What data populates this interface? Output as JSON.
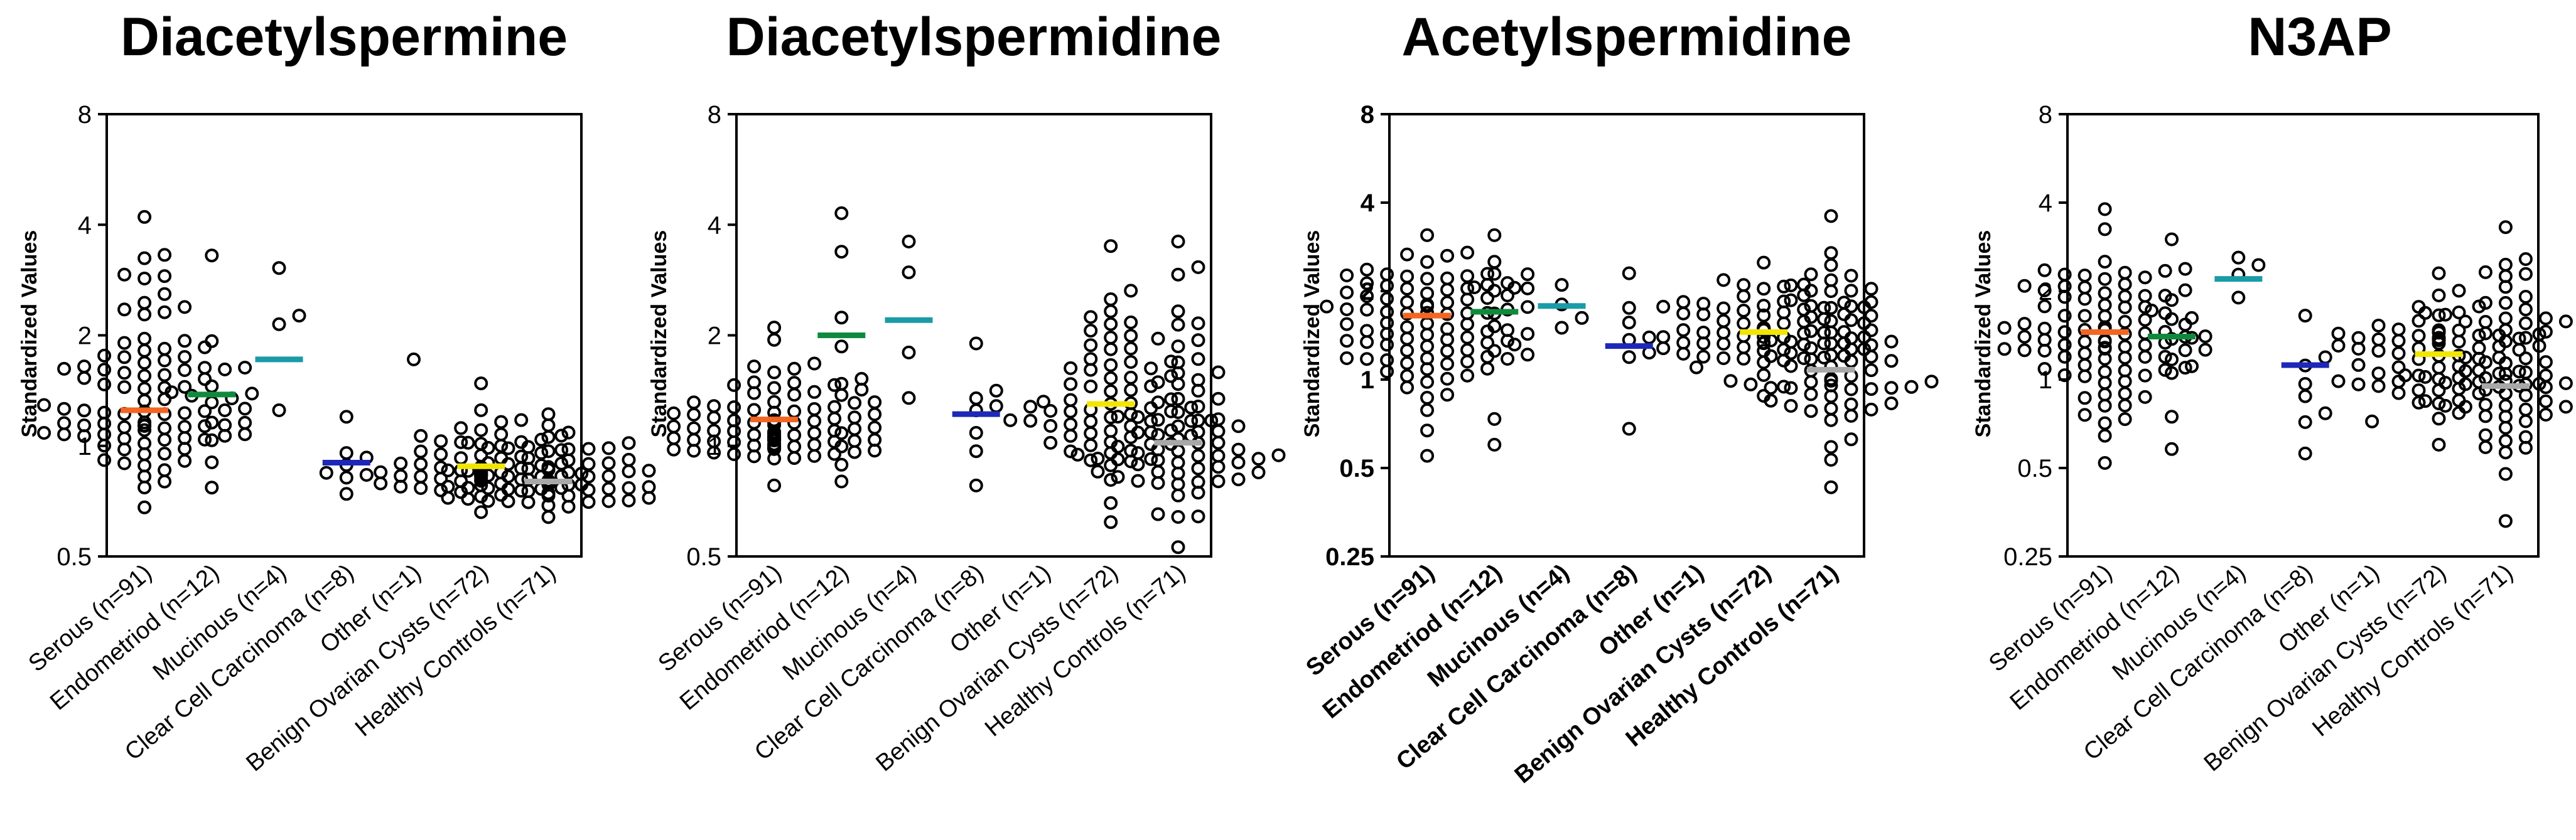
{
  "figure": {
    "description_label": "Standardized values of polyamines by ovarian tumor type"
  },
  "colors": {
    "Serous": "#f26522",
    "Endometriod": "#0f8a3c",
    "Mucinous": "#1a9ba8",
    "Clear Cell Carcinoma": "#1d28b8",
    "Other": "#000000",
    "Benign Ovarian Cysts": "#f2e600",
    "Healthy Controls": "#a8a8a8"
  },
  "chart_data": [
    {
      "type": "scatter",
      "title": "Diacetylspermine",
      "ylabel": "Standardized Values",
      "yscale": "log2",
      "ylim": [
        0.5,
        8
      ],
      "yticks": [
        0.5,
        1,
        2,
        4,
        8
      ],
      "ytick_labels": [
        "0.5",
        "1",
        "2",
        "4",
        "8"
      ],
      "bold_labels": false,
      "categories": [
        "Serous (n=91)",
        "Endometriod (n=12)",
        "Mucinous (n=4)",
        "Clear Cell Carcinoma (n=8)",
        "Other (n=1)",
        "Benign Ovarian Cysts (n=72)",
        "Healthy Controls (n=71)"
      ],
      "groups": [
        {
          "name": "Serous",
          "n": 91,
          "median": 1.25,
          "range": [
            0.68,
            4.2
          ]
        },
        {
          "name": "Endometriod",
          "n": 12,
          "median": 1.38,
          "range": [
            0.77,
            3.3
          ]
        },
        {
          "name": "Mucinous",
          "n": 4,
          "median": 1.72,
          "range": [
            1.25,
            3.05
          ]
        },
        {
          "name": "Clear Cell Carcinoma",
          "n": 8,
          "median": 0.9,
          "range": [
            0.74,
            1.2
          ]
        },
        {
          "name": "Other",
          "n": 1,
          "median": null,
          "range": [
            1.72,
            1.72
          ]
        },
        {
          "name": "Benign Ovarian Cysts",
          "n": 72,
          "median": 0.88,
          "range": [
            0.66,
            1.48
          ]
        },
        {
          "name": "Healthy Controls",
          "n": 71,
          "median": 0.8,
          "range": [
            0.64,
            1.22
          ]
        }
      ]
    },
    {
      "type": "scatter",
      "title": "Diacetylspermidine",
      "ylabel": "Standardized Values",
      "yscale": "log2",
      "ylim": [
        0.5,
        8
      ],
      "yticks": [
        0.5,
        1,
        2,
        4,
        8
      ],
      "ytick_labels": [
        "0.5",
        "1",
        "2",
        "4",
        "8"
      ],
      "bold_labels": false,
      "categories": [
        "Serous (n=91)",
        "Endometriod (n=12)",
        "Mucinous (n=4)",
        "Clear Cell Carcinoma (n=8)",
        "Other (n=1)",
        "Benign Ovarian Cysts (n=72)",
        "Healthy Controls (n=71)"
      ],
      "groups": [
        {
          "name": "Serous",
          "n": 91,
          "median": 1.18,
          "range": [
            0.78,
            2.1
          ]
        },
        {
          "name": "Endometriod",
          "n": 12,
          "median": 2.0,
          "range": [
            0.8,
            4.3
          ]
        },
        {
          "name": "Mucinous",
          "n": 4,
          "median": 2.2,
          "range": [
            1.35,
            3.6
          ]
        },
        {
          "name": "Clear Cell Carcinoma",
          "n": 8,
          "median": 1.22,
          "range": [
            0.78,
            1.9
          ]
        },
        {
          "name": "Other",
          "n": 1,
          "median": null,
          "range": [
            1.32,
            1.32
          ]
        },
        {
          "name": "Benign Ovarian Cysts",
          "n": 72,
          "median": 1.3,
          "range": [
            0.62,
            3.5
          ]
        },
        {
          "name": "Healthy Controls",
          "n": 71,
          "median": 1.02,
          "range": [
            0.53,
            3.6
          ]
        }
      ]
    },
    {
      "type": "scatter",
      "title": "Acetylspermidine",
      "ylabel": "Standardized Values",
      "yscale": "log2",
      "ylim": [
        0.25,
        8
      ],
      "yticks": [
        0.25,
        0.5,
        1,
        2,
        4,
        8
      ],
      "ytick_labels": [
        "0.25",
        "0.5",
        "1",
        "2",
        "4",
        "8"
      ],
      "bold_labels": true,
      "categories": [
        "Serous (n=91)",
        "Endometriod (n=12)",
        "Mucinous (n=4)",
        "Clear Cell Carcinoma (n=8)",
        "Other (n=1)",
        "Benign Ovarian Cysts (n=72)",
        "Healthy Controls (n=71)"
      ],
      "groups": [
        {
          "name": "Serous",
          "n": 91,
          "median": 1.65,
          "range": [
            0.55,
            3.1
          ]
        },
        {
          "name": "Endometriod",
          "n": 12,
          "median": 1.7,
          "range": [
            0.6,
            3.1
          ]
        },
        {
          "name": "Mucinous",
          "n": 4,
          "median": 1.78,
          "range": [
            1.5,
            2.1
          ]
        },
        {
          "name": "Clear Cell Carcinoma",
          "n": 8,
          "median": 1.3,
          "range": [
            0.68,
            2.3
          ]
        },
        {
          "name": "Other",
          "n": 1,
          "median": null,
          "range": [
            1.1,
            1.1
          ]
        },
        {
          "name": "Benign Ovarian Cysts",
          "n": 72,
          "median": 1.45,
          "range": [
            0.88,
            2.5
          ]
        },
        {
          "name": "Healthy Controls",
          "n": 71,
          "median": 1.08,
          "range": [
            0.43,
            3.6
          ]
        }
      ]
    },
    {
      "type": "scatter",
      "title": "N3AP",
      "ylabel": "Standardized Values",
      "yscale": "log2",
      "ylim": [
        0.25,
        8
      ],
      "yticks": [
        0.25,
        0.5,
        1,
        2,
        4,
        8
      ],
      "ytick_labels": [
        "0.25",
        "0.5",
        "1",
        "2",
        "4",
        "8"
      ],
      "bold_labels": false,
      "categories": [
        "Serous (n=91)",
        "Endometriod (n=12)",
        "Mucinous (n=4)",
        "Clear Cell Carcinoma (n=8)",
        "Other (n=1)",
        "Benign Ovarian Cysts (n=72)",
        "Healthy Controls (n=71)"
      ],
      "groups": [
        {
          "name": "Serous",
          "n": 91,
          "median": 1.45,
          "range": [
            0.52,
            3.8
          ]
        },
        {
          "name": "Endometriod",
          "n": 12,
          "median": 1.4,
          "range": [
            0.58,
            3.0
          ]
        },
        {
          "name": "Mucinous",
          "n": 4,
          "median": 2.2,
          "range": [
            1.9,
            2.6
          ]
        },
        {
          "name": "Clear Cell Carcinoma",
          "n": 8,
          "median": 1.12,
          "range": [
            0.56,
            1.65
          ]
        },
        {
          "name": "Other",
          "n": 1,
          "median": null,
          "range": [
            0.72,
            0.72
          ]
        },
        {
          "name": "Benign Ovarian Cysts",
          "n": 72,
          "median": 1.22,
          "range": [
            0.6,
            2.3
          ]
        },
        {
          "name": "Healthy Controls",
          "n": 71,
          "median": 0.95,
          "range": [
            0.33,
            3.3
          ]
        }
      ]
    }
  ]
}
